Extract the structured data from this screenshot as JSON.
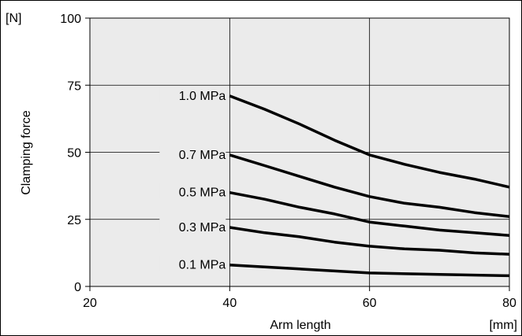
{
  "chart_data": {
    "type": "line",
    "y_unit": "[N]",
    "x_unit": "[mm]",
    "xlabel": "Arm length",
    "ylabel": "Clamping force",
    "xlim": [
      20,
      80
    ],
    "ylim": [
      0,
      100
    ],
    "x_ticks": [
      "20",
      "40",
      "60",
      "80"
    ],
    "y_ticks": [
      "0",
      "25",
      "50",
      "75",
      "100"
    ],
    "grid": true,
    "plot_background": "#ebebeb",
    "line_color": "#000000",
    "series": [
      {
        "name": "1.0 MPa",
        "x": [
          40,
          45,
          50,
          55,
          60,
          65,
          70,
          75,
          80
        ],
        "y": [
          71,
          66,
          60.5,
          54.5,
          49,
          45.5,
          42.5,
          40,
          37
        ]
      },
      {
        "name": "0.7 MPa",
        "x": [
          40,
          45,
          50,
          55,
          60,
          65,
          70,
          75,
          80
        ],
        "y": [
          49,
          45,
          41,
          37,
          33.5,
          31,
          29.5,
          27.5,
          26
        ]
      },
      {
        "name": "0.5 MPa",
        "x": [
          40,
          45,
          50,
          55,
          60,
          65,
          70,
          75,
          80
        ],
        "y": [
          35,
          32.5,
          29.5,
          27,
          24,
          22.5,
          21,
          20,
          19
        ]
      },
      {
        "name": "0.3 MPa",
        "x": [
          40,
          45,
          50,
          55,
          60,
          65,
          70,
          75,
          80
        ],
        "y": [
          22,
          20,
          18.5,
          16.5,
          15,
          14,
          13.5,
          12.5,
          12
        ]
      },
      {
        "name": "0.1 MPa",
        "x": [
          40,
          50,
          60,
          70,
          80
        ],
        "y": [
          8,
          6.5,
          5,
          4.5,
          4
        ]
      }
    ]
  }
}
